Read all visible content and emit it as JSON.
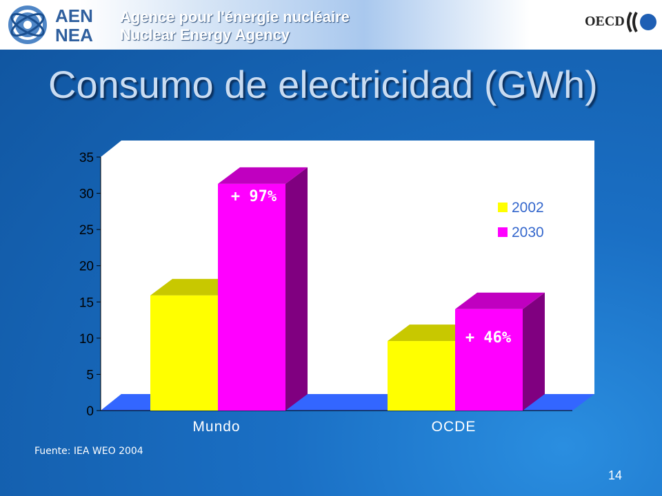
{
  "header": {
    "logo_text": "AEN NEA",
    "agency_fr": "Agence pour l'énergie nucléaire",
    "agency_en": "Nuclear Energy Agency",
    "oecd": "OECD"
  },
  "slide": {
    "title": "Consumo de electricidad (GWh)",
    "source": "Fuente: IEA WEO 2004",
    "page_number": "14"
  },
  "chart_data": {
    "type": "bar",
    "categories": [
      "Mundo",
      "OCDE"
    ],
    "series": [
      {
        "name": "2002",
        "values": [
          15.9,
          9.6
        ],
        "color": "#ffff00"
      },
      {
        "name": "2030",
        "values": [
          31.3,
          14.0
        ],
        "color": "#ff00ff"
      }
    ],
    "annotations": [
      "+ 97%",
      "+ 46%"
    ],
    "ylim": [
      0,
      35
    ],
    "yticks": [
      0,
      5,
      10,
      15,
      20,
      25,
      30,
      35
    ],
    "legend": "right",
    "grid": false,
    "xlabel": "",
    "ylabel": ""
  }
}
